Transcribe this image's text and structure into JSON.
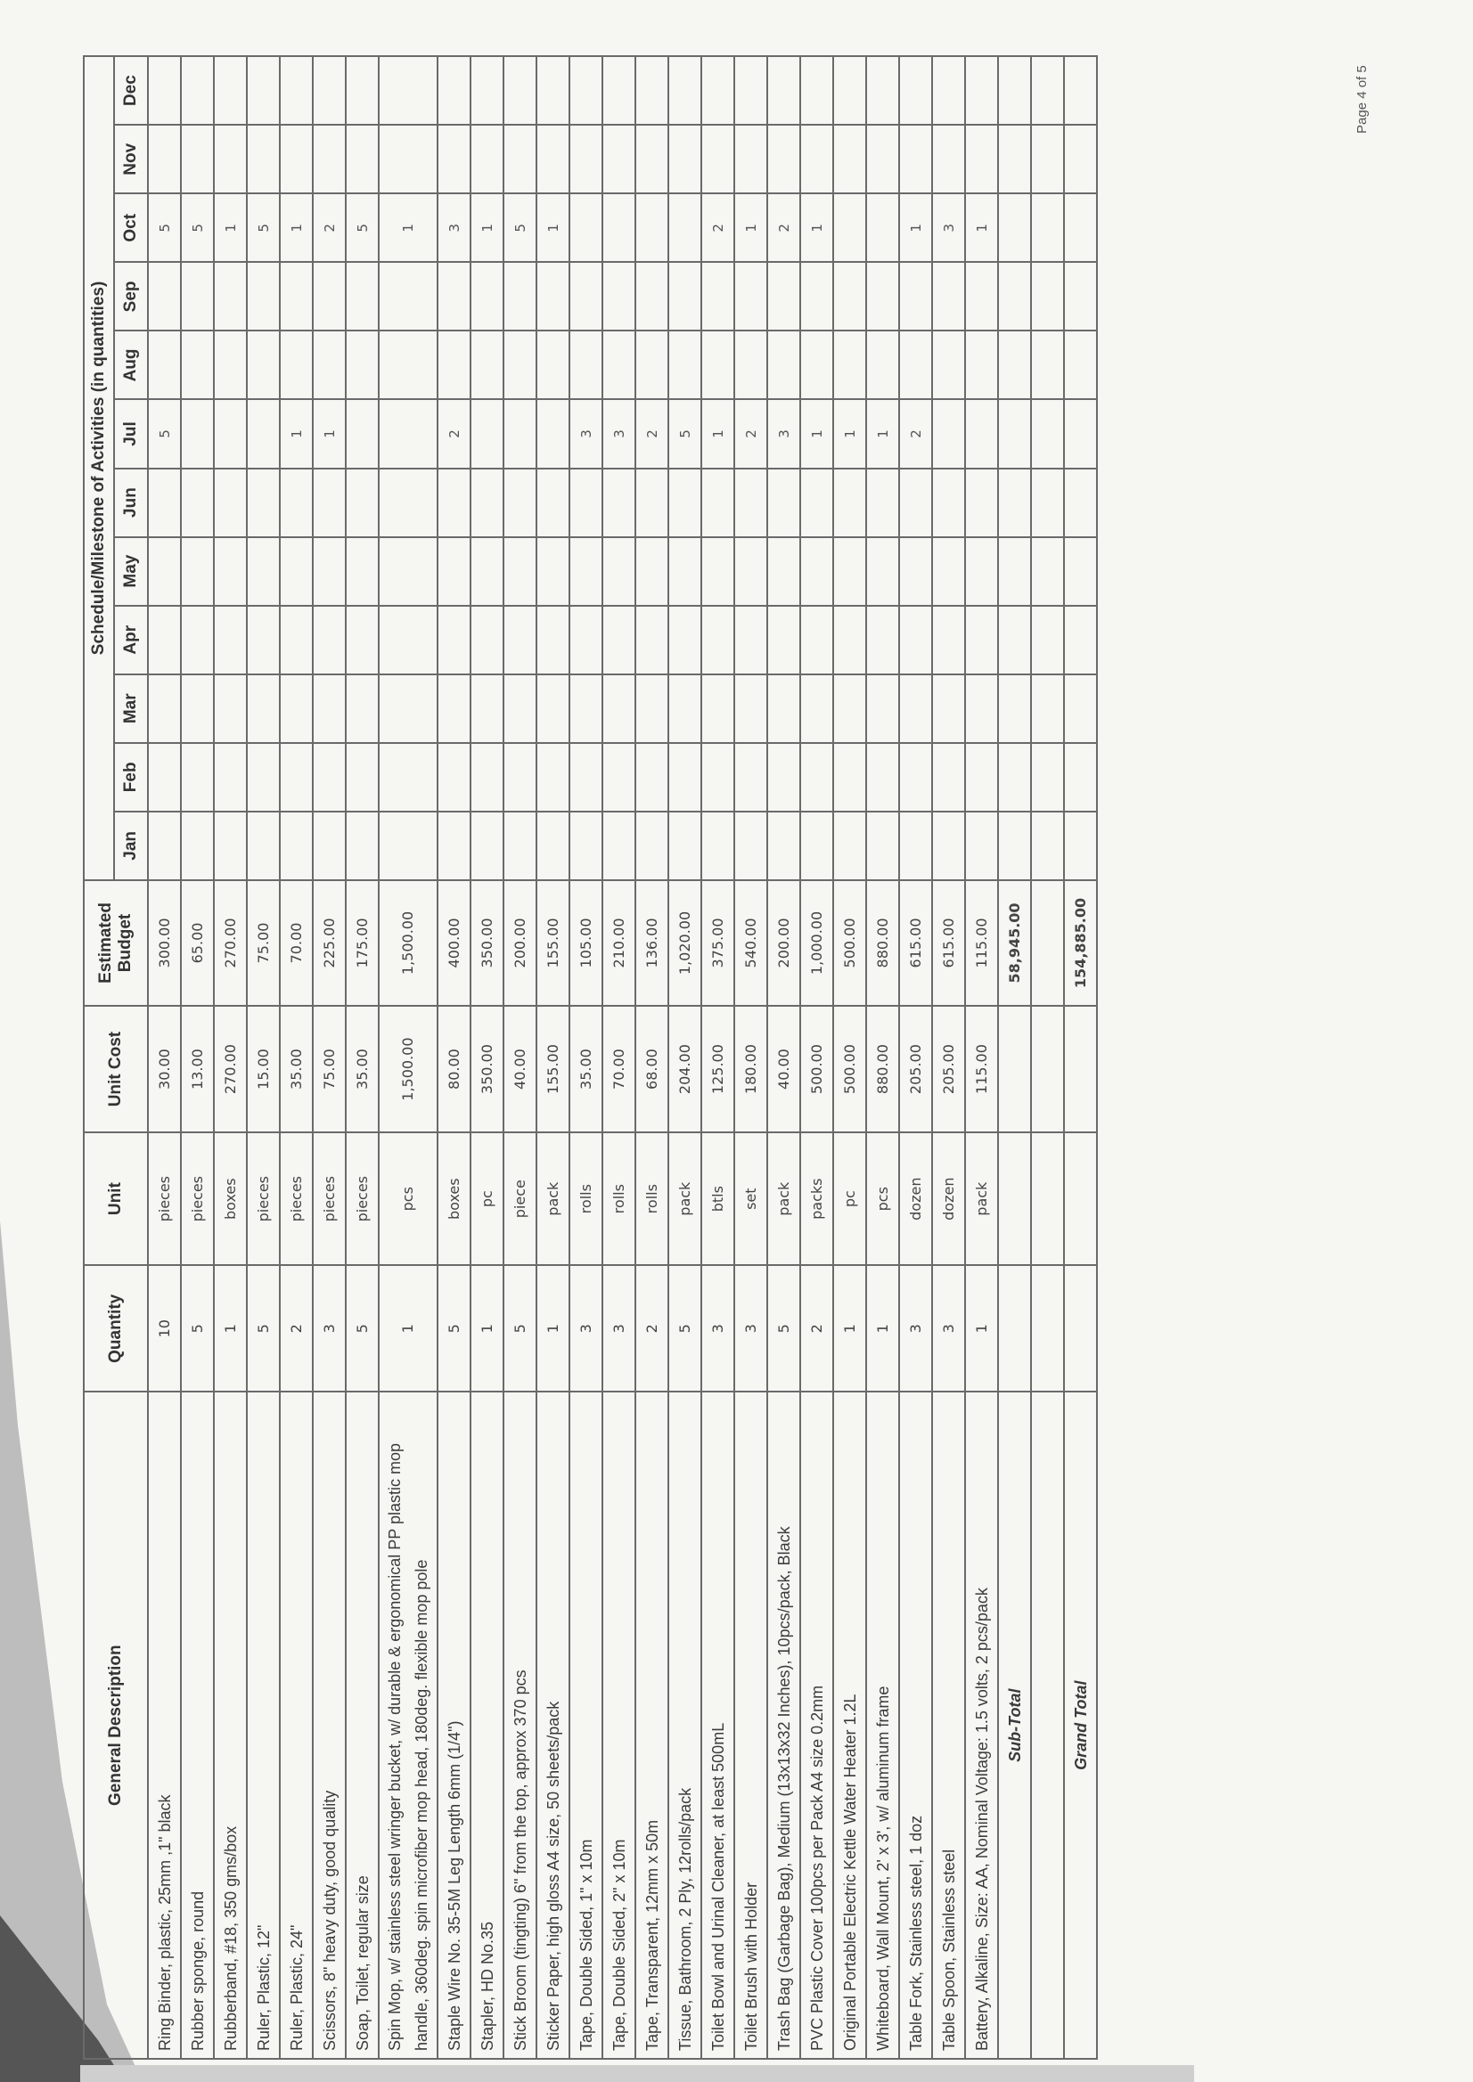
{
  "headers": {
    "description": "General Description",
    "quantity": "Quantity",
    "unit": "Unit",
    "unit_cost": "Unit Cost",
    "budget": "Estimated Budget",
    "schedule": "Schedule/Milestone of Activities (in quantities)",
    "months": [
      "Jan",
      "Feb",
      "Mar",
      "Apr",
      "May",
      "Jun",
      "Jul",
      "Aug",
      "Sep",
      "Oct",
      "Nov",
      "Dec"
    ]
  },
  "rows": [
    {
      "description": "Ring Binder, plastic, 25mm ,1\" black",
      "quantity": "10",
      "unit": "pieces",
      "unit_cost": "30.00",
      "budget": "300.00",
      "schedule": {
        "Jul": "5",
        "Oct": "5"
      }
    },
    {
      "description": "Rubber sponge, round",
      "quantity": "5",
      "unit": "pieces",
      "unit_cost": "13.00",
      "budget": "65.00",
      "schedule": {
        "Oct": "5"
      }
    },
    {
      "description": "Rubberband, #18, 350 gms/box",
      "quantity": "1",
      "unit": "boxes",
      "unit_cost": "270.00",
      "budget": "270.00",
      "schedule": {
        "Oct": "1"
      }
    },
    {
      "description": "Ruler, Plastic, 12\"",
      "quantity": "5",
      "unit": "pieces",
      "unit_cost": "15.00",
      "budget": "75.00",
      "schedule": {
        "Oct": "5"
      }
    },
    {
      "description": "Ruler, Plastic, 24\"",
      "quantity": "2",
      "unit": "pieces",
      "unit_cost": "35.00",
      "budget": "70.00",
      "schedule": {
        "Jul": "1",
        "Oct": "1"
      }
    },
    {
      "description": "Scissors, 8\" heavy duty, good quality",
      "quantity": "3",
      "unit": "pieces",
      "unit_cost": "75.00",
      "budget": "225.00",
      "schedule": {
        "Jul": "1",
        "Oct": "2"
      }
    },
    {
      "description": "Soap, Toilet, regular size",
      "quantity": "5",
      "unit": "pieces",
      "unit_cost": "35.00",
      "budget": "175.00",
      "schedule": {
        "Oct": "5"
      }
    },
    {
      "description": "Spin Mop, w/ stainless steel wringer bucket, w/ durable & ergonomical PP plastic mop handle, 360deg. spin microfiber mop head, 180deg. flexible mop pole",
      "quantity": "1",
      "unit": "pcs",
      "unit_cost": "1,500.00",
      "budget": "1,500.00",
      "schedule": {
        "Oct": "1"
      }
    },
    {
      "description": "Staple Wire No. 35-5M Leg Length 6mm (1/4\")",
      "quantity": "5",
      "unit": "boxes",
      "unit_cost": "80.00",
      "budget": "400.00",
      "schedule": {
        "Jul": "2",
        "Oct": "3"
      }
    },
    {
      "description": "Stapler, HD No.35",
      "quantity": "1",
      "unit": "pc",
      "unit_cost": "350.00",
      "budget": "350.00",
      "schedule": {
        "Oct": "1"
      }
    },
    {
      "description": "Stick Broom (tingting) 6\" from the top, approx 370 pcs",
      "quantity": "5",
      "unit": "piece",
      "unit_cost": "40.00",
      "budget": "200.00",
      "schedule": {
        "Oct": "5"
      }
    },
    {
      "description": "Sticker Paper, high gloss A4 size, 50 sheets/pack",
      "quantity": "1",
      "unit": "pack",
      "unit_cost": "155.00",
      "budget": "155.00",
      "schedule": {
        "Oct": "1"
      }
    },
    {
      "description": "Tape, Double Sided, 1\" x 10m",
      "quantity": "3",
      "unit": "rolls",
      "unit_cost": "35.00",
      "budget": "105.00",
      "schedule": {
        "Jul": "3"
      }
    },
    {
      "description": "Tape, Double Sided, 2\" x 10m",
      "quantity": "3",
      "unit": "rolls",
      "unit_cost": "70.00",
      "budget": "210.00",
      "schedule": {
        "Jul": "3"
      }
    },
    {
      "description": "Tape, Transparent, 12mm x 50m",
      "quantity": "2",
      "unit": "rolls",
      "unit_cost": "68.00",
      "budget": "136.00",
      "schedule": {
        "Jul": "2"
      }
    },
    {
      "description": "Tissue, Bathroom, 2 Ply, 12rolls/pack",
      "quantity": "5",
      "unit": "pack",
      "unit_cost": "204.00",
      "budget": "1,020.00",
      "schedule": {
        "Jul": "5"
      }
    },
    {
      "description": "Toilet Bowl and Urinal Cleaner, at least 500mL",
      "quantity": "3",
      "unit": "btls",
      "unit_cost": "125.00",
      "budget": "375.00",
      "schedule": {
        "Jul": "1",
        "Oct": "2"
      }
    },
    {
      "description": "Toilet Brush with Holder",
      "quantity": "3",
      "unit": "set",
      "unit_cost": "180.00",
      "budget": "540.00",
      "schedule": {
        "Jul": "2",
        "Oct": "1"
      }
    },
    {
      "description": "Trash Bag (Garbage Bag), Medium (13x13x32 Inches), 10pcs/pack, Black",
      "quantity": "5",
      "unit": "pack",
      "unit_cost": "40.00",
      "budget": "200.00",
      "schedule": {
        "Jul": "3",
        "Oct": "2"
      }
    },
    {
      "description": "PVC Plastic Cover 100pcs per Pack A4 size 0.2mm",
      "quantity": "2",
      "unit": "packs",
      "unit_cost": "500.00",
      "budget": "1,000.00",
      "schedule": {
        "Jul": "1",
        "Oct": "1"
      }
    },
    {
      "description": "Original Portable Electric Kettle Water Heater 1.2L",
      "quantity": "1",
      "unit": "pc",
      "unit_cost": "500.00",
      "budget": "500.00",
      "schedule": {
        "Jul": "1"
      }
    },
    {
      "description": "Whiteboard, Wall Mount, 2' x 3', w/ aluminum frame",
      "quantity": "1",
      "unit": "pcs",
      "unit_cost": "880.00",
      "budget": "880.00",
      "schedule": {
        "Jul": "1"
      }
    },
    {
      "description": "Table Fork, Stainless steel, 1 doz",
      "quantity": "3",
      "unit": "dozen",
      "unit_cost": "205.00",
      "budget": "615.00",
      "schedule": {
        "Jul": "2",
        "Oct": "1"
      }
    },
    {
      "description": "Table Spoon, Stainless steel",
      "quantity": "3",
      "unit": "dozen",
      "unit_cost": "205.00",
      "budget": "615.00",
      "schedule": {
        "Oct": "3"
      }
    },
    {
      "description": "Battery, Alkaline, Size: AA, Nominal Voltage: 1.5 volts, 2 pcs/pack",
      "quantity": "1",
      "unit": "pack",
      "unit_cost": "115.00",
      "budget": "115.00",
      "schedule": {
        "Oct": "1"
      }
    }
  ],
  "subtotal": {
    "label": "Sub-Total",
    "budget": "58,945.00"
  },
  "grand_total": {
    "label": "Grand Total",
    "budget": "154,885.00"
  },
  "page_number": "Page 4 of 5",
  "colors": {
    "background": "#f6f6f3",
    "grid": "#6a6a6a",
    "text": "#3a3a3a"
  }
}
